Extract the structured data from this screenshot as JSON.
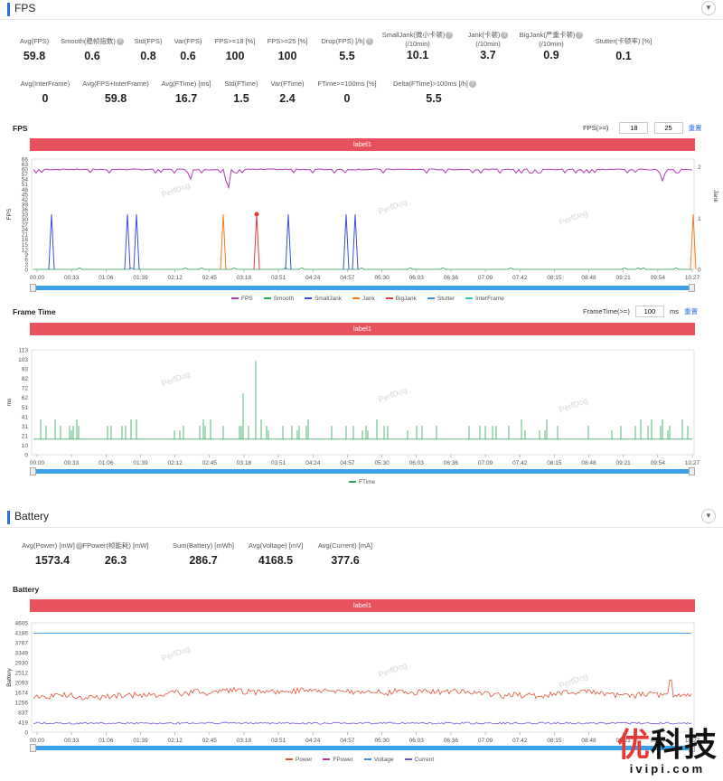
{
  "fps_section": {
    "title": "FPS",
    "metrics_row1": [
      {
        "label": "Avg(FPS)",
        "value": "59.8",
        "help": false
      },
      {
        "label": "Smooth(稳帧指数)",
        "value": "0.6",
        "help": true
      },
      {
        "label": "Std(FPS)",
        "value": "0.8",
        "help": false
      },
      {
        "label": "Var(FPS)",
        "value": "0.6",
        "help": false
      },
      {
        "label": "FPS>=18 [%]",
        "value": "100",
        "help": false
      },
      {
        "label": "FPS>=25 [%]",
        "value": "100",
        "help": false
      },
      {
        "label": "Drop(FPS) [/h]",
        "value": "5.5",
        "help": true
      },
      {
        "label": "SmallJank(微小卡顿)",
        "label2": "(/10min)",
        "value": "10.1",
        "help": true
      },
      {
        "label": "Jank(卡顿)",
        "label2": "(/10min)",
        "value": "3.7",
        "help": true
      },
      {
        "label": "BigJank(严重卡顿)",
        "label2": "(/10min)",
        "value": "0.9",
        "help": true
      },
      {
        "label": "Stutter(卡顿率) [%]",
        "value": "0.1",
        "help": false
      }
    ],
    "metrics_row2": [
      {
        "label": "Avg(InterFrame)",
        "value": "0",
        "help": false
      },
      {
        "label": "Avg(FPS+InterFrame)",
        "value": "59.8",
        "help": false
      },
      {
        "label": "Avg(FTime) [ms]",
        "value": "16.7",
        "help": false
      },
      {
        "label": "Std(FTime)",
        "value": "1.5",
        "help": false
      },
      {
        "label": "Var(FTime)",
        "value": "2.4",
        "help": false
      },
      {
        "label": "FTime>=100ms [%]",
        "value": "0",
        "help": false
      },
      {
        "label": "Delta(FTime)>100ms [/h]",
        "value": "5.5",
        "help": true
      }
    ]
  },
  "fps_chart": {
    "title": "FPS",
    "label_bar": "label1",
    "control_label": "FPS(>=)",
    "control_values": [
      "18",
      "25"
    ],
    "reset": "重置",
    "y_axis_title": "FPS",
    "y2_axis_title": "Jank",
    "legend": [
      {
        "name": "FPS",
        "color": "#b23cb5"
      },
      {
        "name": "Smooth",
        "color": "#2ea55a"
      },
      {
        "name": "SmallJank",
        "color": "#3b4fd6"
      },
      {
        "name": "Jank",
        "color": "#f07c1e"
      },
      {
        "name": "BigJank",
        "color": "#e23b3b"
      },
      {
        "name": "Stutter",
        "color": "#3a8fe0"
      },
      {
        "name": "InterFrame",
        "color": "#2ec4c4"
      }
    ]
  },
  "frametime_chart": {
    "title": "Frame Time",
    "label_bar": "label1",
    "control_label": "FrameTime(>=)",
    "control_value": "100",
    "unit": "ms",
    "reset": "重置",
    "y_axis_title": "ms",
    "legend": [
      {
        "name": "FTime",
        "color": "#2ea55a"
      }
    ]
  },
  "battery_section": {
    "title": "Battery",
    "metrics": [
      {
        "label": "Avg(Power) [mW]",
        "value": "1573.4",
        "help": true
      },
      {
        "label": "FPower(帧能耗) [mW]",
        "value": "26.3",
        "help": false
      },
      {
        "label": "Sum(Battery) [mWh]",
        "value": "286.7",
        "help": false
      },
      {
        "label": "Avg(Voltage) [mV]",
        "value": "4168.5",
        "help": false
      },
      {
        "label": "Avg(Current) [mA]",
        "value": "377.6",
        "help": false
      }
    ]
  },
  "battery_chart": {
    "title": "Battery",
    "label_bar": "label1",
    "y_axis_title": "Battery",
    "legend": [
      {
        "name": "Power",
        "color": "#e0533d"
      },
      {
        "name": "FPower",
        "color": "#c0389a"
      },
      {
        "name": "Voltage",
        "color": "#3a8fe0"
      },
      {
        "name": "Current",
        "color": "#7b4fd6"
      }
    ]
  },
  "x_ticks": [
    "00:00",
    "00:33",
    "01:06",
    "01:39",
    "02:12",
    "02:45",
    "03:18",
    "03:51",
    "04:24",
    "04:57",
    "05:30",
    "06:03",
    "06:36",
    "07:09",
    "07:42",
    "08:15",
    "08:48",
    "09:21",
    "09:54",
    "10:27"
  ],
  "chart_data": [
    {
      "type": "line",
      "title": "FPS",
      "ylabel": "FPS",
      "ylim": [
        0,
        66
      ],
      "yticks": [
        0,
        3,
        6,
        9,
        12,
        15,
        18,
        21,
        24,
        27,
        30,
        33,
        36,
        39,
        42,
        45,
        48,
        51,
        54,
        57,
        60,
        63,
        66
      ],
      "y_tick_labels_shown": [
        "0",
        "3",
        "6",
        "9",
        "12",
        "15",
        "18",
        "21",
        "24",
        "27",
        "30",
        "33",
        "36",
        "39",
        "42",
        "45",
        "48",
        "51",
        "54",
        "57",
        "60",
        "63",
        "66"
      ],
      "y2label": "Jank",
      "y2_ticks": [
        "0",
        "1",
        "2"
      ],
      "x_ticks": [
        "00:00",
        "00:33",
        "01:06",
        "01:39",
        "02:12",
        "02:45",
        "03:18",
        "03:51",
        "04:24",
        "04:57",
        "05:30",
        "06:03",
        "06:36",
        "07:09",
        "07:42",
        "08:15",
        "08:48",
        "09:21",
        "09:54",
        "10:27"
      ],
      "series": [
        {
          "name": "FPS",
          "baseline": 59.8,
          "dips": [
            [
              212,
              54
            ],
            [
              250,
              53
            ],
            [
              254,
              49
            ],
            [
              732,
              53
            ]
          ]
        },
        {
          "name": "SmallJank",
          "spikes": [
            22,
            106,
            116,
            284,
            348,
            358
          ]
        },
        {
          "name": "Jank",
          "spikes": [
            212,
            732
          ]
        },
        {
          "name": "BigJank",
          "spikes": [
            226
          ]
        }
      ]
    },
    {
      "type": "line",
      "title": "Frame Time",
      "ylabel": "ms",
      "ylim": [
        0,
        113
      ],
      "y_tick_labels_shown": [
        "0",
        "10",
        "21",
        "31",
        "41",
        "51",
        "62",
        "72",
        "82",
        "93",
        "103",
        "113"
      ],
      "x_ticks": [
        "00:00",
        "00:33",
        "01:06",
        "01:39",
        "02:12",
        "02:45",
        "03:18",
        "03:51",
        "04:24",
        "04:57",
        "05:30",
        "06:03",
        "06:36",
        "07:09",
        "07:42",
        "08:15",
        "08:48",
        "09:21",
        "09:54",
        "10:27"
      ],
      "series": [
        {
          "name": "FTime",
          "baseline": 16.7,
          "peaks": [
            [
              212,
              66
            ],
            [
              226,
              101
            ],
            [
              732,
              70
            ]
          ]
        }
      ]
    },
    {
      "type": "line",
      "title": "Battery",
      "ylabel": "Battery",
      "ylim": [
        0,
        4605
      ],
      "y_tick_labels_shown": [
        "0",
        "419",
        "837",
        "1256",
        "1674",
        "2093",
        "2512",
        "2930",
        "3349",
        "3767",
        "4186",
        "4605"
      ],
      "x_ticks": [
        "00:00",
        "00:33",
        "01:06",
        "01:39",
        "02:12",
        "02:45",
        "03:18",
        "03:51",
        "04:24",
        "04:57",
        "05:30",
        "06:03",
        "06:36",
        "07:09",
        "07:42",
        "08:15",
        "08:48",
        "09:21",
        "09:54",
        "10:27"
      ],
      "series": [
        {
          "name": "Power",
          "approx_mean": 1573.4
        },
        {
          "name": "Voltage",
          "approx_mean": 4168.5
        },
        {
          "name": "Current",
          "approx_mean": 377.6
        }
      ]
    }
  ],
  "watermark": {
    "brand": "优科技",
    "first_char": "优",
    "rest": "科技",
    "url": "ivipi.com"
  },
  "chart_watermark": "PerfDog"
}
